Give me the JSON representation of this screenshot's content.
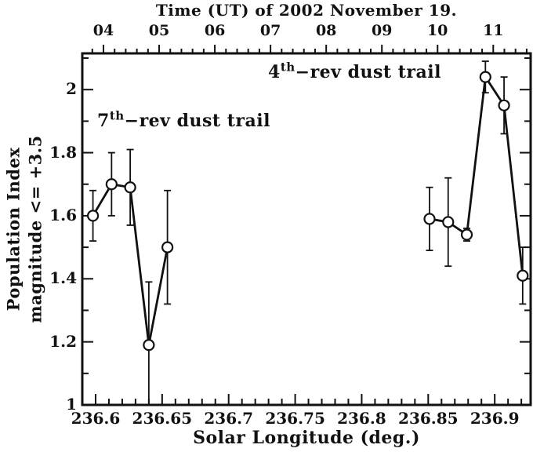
{
  "page": {
    "background": "#ffffff",
    "ink": "#111111"
  },
  "top_axis_title": "Time (UT) of 2002 November 19.",
  "x_axis_title": "Solar Longitude (deg.)",
  "y_axis_title_line1": "Population Index",
  "y_axis_title_line2": "magnitude <= +3.5",
  "annotations": [
    {
      "base": "7",
      "sup": "th",
      "rest": "−rev dust trail"
    },
    {
      "base": "4",
      "sup": "th",
      "rest": "−rev dust trail"
    }
  ],
  "chart_data": {
    "type": "line",
    "title": "Time (UT) of 2002 November 19.",
    "xlabel": "Solar Longitude (deg.)",
    "ylabel": "Population Index magnitude <= +3.5",
    "xlim": [
      236.59,
      236.927
    ],
    "ylim": [
      1.0,
      2.115
    ],
    "grid": false,
    "legend": "none (two in-plot text annotations)",
    "x_major_ticks": [
      236.6,
      236.65,
      236.7,
      236.75,
      236.8,
      236.85,
      236.9
    ],
    "x_tick_labels": [
      "236.6",
      "236.65",
      "236.7",
      "236.75",
      "236.8",
      "236.85",
      "236.9"
    ],
    "x_minor_step": 0.01,
    "y_major_ticks": [
      1,
      1.2,
      1.4,
      1.6,
      1.8,
      2
    ],
    "y_tick_labels": [
      "1",
      "1.2",
      "1.4",
      "1.6",
      "1.8",
      "2"
    ],
    "y_minor_step": 0.1,
    "top_axis": {
      "title": "Time (UT) of 2002 November 19.",
      "hour_ticks": [
        4,
        5,
        6,
        7,
        8,
        9,
        10,
        11
      ],
      "hour_labels": [
        "04",
        "05",
        "06",
        "07",
        "08",
        "09",
        "10",
        "11"
      ],
      "hour4_longitude": 236.6059,
      "deg_per_hour": 0.041856,
      "minor_ticks_per_hour": 5
    },
    "series": [
      {
        "name": "7th-rev dust trail",
        "marker": "open-circle",
        "x": [
          236.598,
          236.612,
          236.626,
          236.64,
          236.654
        ],
        "y": [
          1.6,
          1.7,
          1.69,
          1.19,
          1.5
        ],
        "yerr": [
          0.08,
          0.1,
          0.12,
          0.2,
          0.18
        ]
      },
      {
        "name": "4th-rev dust trail",
        "marker": "open-circle",
        "x": [
          236.851,
          236.865,
          236.879,
          236.893,
          236.907,
          236.921
        ],
        "y": [
          1.59,
          1.58,
          1.54,
          2.04,
          1.95,
          1.41
        ],
        "yerr": [
          0.1,
          0.14,
          0.02,
          0.05,
          0.09,
          0.09
        ]
      }
    ]
  }
}
